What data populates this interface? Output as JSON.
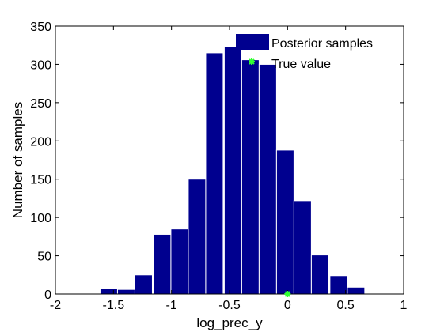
{
  "chart_data": {
    "type": "bar",
    "xlabel": "log_prec_y",
    "ylabel": "Number of samples",
    "xlim": [
      -2,
      1
    ],
    "ylim": [
      0,
      350
    ],
    "xticks": [
      "-2",
      "-1.5",
      "-1",
      "-0.5",
      "0",
      "0.5",
      "1"
    ],
    "xtick_values": [
      -2,
      -1.5,
      -1,
      -0.5,
      0,
      0.5,
      1
    ],
    "yticks": [
      "0",
      "50",
      "100",
      "150",
      "200",
      "250",
      "300",
      "350"
    ],
    "ytick_values": [
      0,
      50,
      100,
      150,
      200,
      250,
      300,
      350
    ],
    "bin_width": 0.15,
    "bins": [
      {
        "center": -1.54,
        "count": 7
      },
      {
        "center": -1.39,
        "count": 6
      },
      {
        "center": -1.24,
        "count": 25
      },
      {
        "center": -1.08,
        "count": 78
      },
      {
        "center": -0.93,
        "count": 85
      },
      {
        "center": -0.78,
        "count": 150
      },
      {
        "center": -0.63,
        "count": 315
      },
      {
        "center": -0.47,
        "count": 323
      },
      {
        "center": -0.32,
        "count": 306
      },
      {
        "center": -0.17,
        "count": 300
      },
      {
        "center": -0.02,
        "count": 188
      },
      {
        "center": 0.13,
        "count": 122
      },
      {
        "center": 0.28,
        "count": 51
      },
      {
        "center": 0.44,
        "count": 24
      },
      {
        "center": 0.59,
        "count": 9
      }
    ],
    "true_value": {
      "x": 0,
      "y": 0
    },
    "legend": {
      "placement": "top-right",
      "entries": [
        {
          "label": "Posterior samples",
          "kind": "bar"
        },
        {
          "label": "True value",
          "kind": "marker"
        }
      ]
    },
    "colors": {
      "bar": "#00008f",
      "bar_edge": "#ffffff",
      "marker": "#33ff33",
      "axis": "#000000"
    },
    "grid": false
  }
}
